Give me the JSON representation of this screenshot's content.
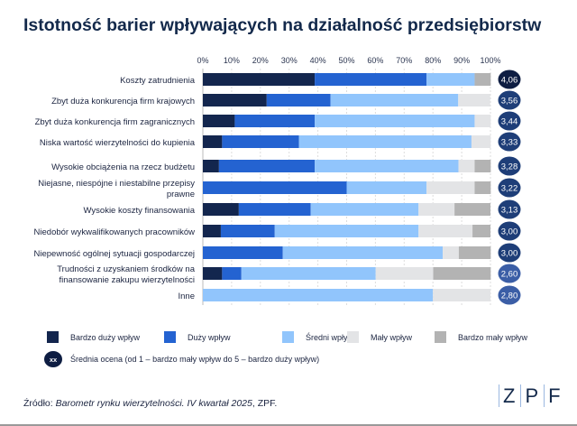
{
  "chart_data": {
    "type": "bar",
    "orientation": "horizontal",
    "stacked": true,
    "title": "Istotność barier wpływających na działalność przedsiębiorstw",
    "xlim": [
      0,
      100
    ],
    "x_ticks": [
      "0%",
      "10%",
      "20%",
      "30%",
      "40%",
      "50%",
      "60%",
      "70%",
      "80%",
      "90%",
      "100%"
    ],
    "grid": true,
    "legend_position": "bottom",
    "categories": [
      "Koszty zatrudnienia",
      "Zbyt duża konkurencja firm krajowych",
      "Zbyt duża konkurencja firm zagranicznych",
      "Niska wartość wierzytelności do kupienia",
      "Wysokie obciążenia na rzecz budżetu",
      "Niejasne, niespójne i niestabilne przepisy prawne",
      "Wysokie koszty finansowania",
      "Niedobór wykwalifikowanych pracowników",
      "Niepewność ogólnej sytuacji gospodarczej",
      "Trudności z uzyskaniem środków na finansowanie zakupu wierzytelności",
      "Inne"
    ],
    "series": [
      {
        "name": "Bardzo duży wpływ",
        "color": "#13264e",
        "values": [
          38.9,
          22.2,
          11.1,
          6.7,
          5.6,
          0,
          12.5,
          6.25,
          0,
          6.7,
          0
        ]
      },
      {
        "name": "Duży wpływ",
        "color": "#2463d1",
        "values": [
          38.9,
          22.2,
          27.8,
          26.7,
          33.3,
          50,
          25,
          18.75,
          27.8,
          6.7,
          0
        ]
      },
      {
        "name": "Średni wpływ",
        "color": "#91c5fc",
        "values": [
          16.7,
          44.4,
          55.6,
          60,
          50,
          27.8,
          37.5,
          50,
          55.6,
          46.7,
          80
        ]
      },
      {
        "name": "Mały wpływ",
        "color": "#e3e4e6",
        "values": [
          0,
          11.1,
          5.6,
          6.7,
          5.6,
          16.7,
          12.5,
          18.75,
          5.6,
          20,
          20
        ]
      },
      {
        "name": "Bardzo mały wpływ",
        "color": "#b3b3b3",
        "values": [
          5.6,
          0,
          0,
          0,
          5.6,
          5.6,
          12.5,
          6.25,
          11.1,
          20,
          0
        ]
      }
    ],
    "average_scores": [
      "4,06",
      "3,56",
      "3,44",
      "3,33",
      "3,28",
      "3,22",
      "3,13",
      "3,00",
      "3,00",
      "2,60",
      "2,80"
    ],
    "average_legend": {
      "symbol": "xx",
      "label": "Średnia ocena (od 1 – bardzo mały wpływ do 5 – bardzo duży wpływ)"
    }
  },
  "source": {
    "prefix": "Źródło: ",
    "italic": "Barometr rynku wierzytelności. IV kwartał 2025",
    "suffix": ", ZPF."
  },
  "logo": [
    "Z",
    "P",
    "F"
  ]
}
